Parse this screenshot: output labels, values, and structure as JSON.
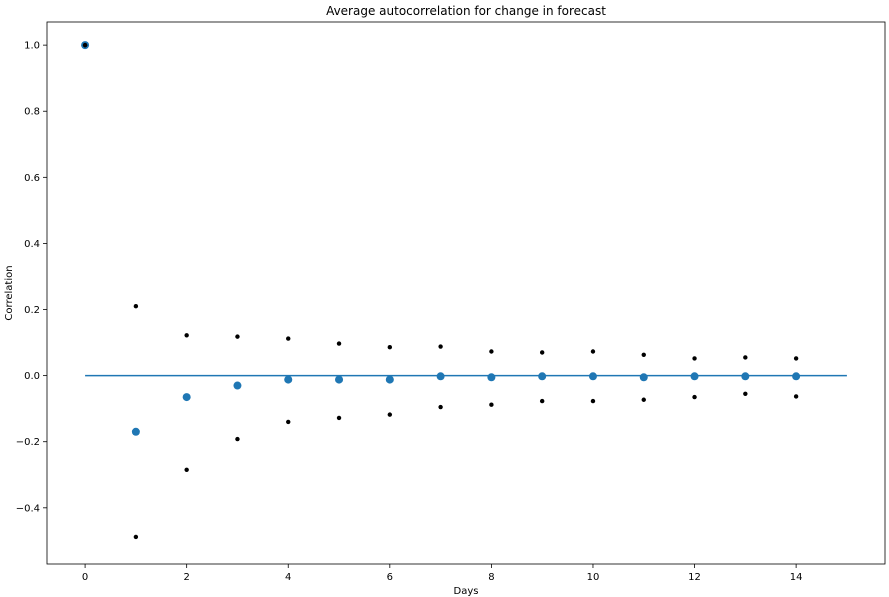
{
  "chart_data": {
    "type": "scatter",
    "title": "Average autocorrelation for change in forecast",
    "xlabel": "Days",
    "ylabel": "Correlation",
    "xlim": [
      -0.75,
      15.75
    ],
    "ylim": [
      -0.57,
      1.07
    ],
    "xticks": [
      0,
      2,
      4,
      6,
      8,
      10,
      12,
      14
    ],
    "yticks": [
      -0.4,
      -0.2,
      0.0,
      0.2,
      0.4,
      0.6,
      0.8,
      1.0
    ],
    "ytick_labels": [
      "−0.4",
      "−0.2",
      "0.0",
      "0.2",
      "0.4",
      "0.6",
      "0.8",
      "1.0"
    ],
    "grid": false,
    "series": [
      {
        "role": "mean",
        "color": "#1f77b4",
        "x": [
          0,
          1,
          2,
          3,
          4,
          5,
          6,
          7,
          8,
          9,
          10,
          11,
          12,
          13,
          14
        ],
        "y": [
          1.0,
          -0.17,
          -0.065,
          -0.03,
          -0.012,
          -0.012,
          -0.012,
          -0.002,
          -0.005,
          -0.002,
          -0.002,
          -0.005,
          -0.002,
          -0.002,
          -0.002
        ]
      },
      {
        "role": "upper",
        "color": "#000000",
        "x": [
          0,
          1,
          2,
          3,
          4,
          5,
          6,
          7,
          8,
          9,
          10,
          11,
          12,
          13,
          14
        ],
        "y": [
          1.0,
          0.21,
          0.122,
          0.118,
          0.112,
          0.097,
          0.086,
          0.088,
          0.073,
          0.07,
          0.073,
          0.063,
          0.052,
          0.055,
          0.052
        ]
      },
      {
        "role": "lower",
        "color": "#000000",
        "x": [
          0,
          1,
          2,
          3,
          4,
          5,
          6,
          7,
          8,
          9,
          10,
          11,
          12,
          13,
          14
        ],
        "y": [
          1.0,
          -0.488,
          -0.285,
          -0.192,
          -0.14,
          -0.128,
          -0.118,
          -0.095,
          -0.088,
          -0.077,
          -0.077,
          -0.073,
          -0.065,
          -0.055,
          -0.063
        ]
      }
    ],
    "reference_line": {
      "y": 0.0,
      "x_from": 0,
      "x_to": 15,
      "color": "#1f77b4"
    }
  }
}
